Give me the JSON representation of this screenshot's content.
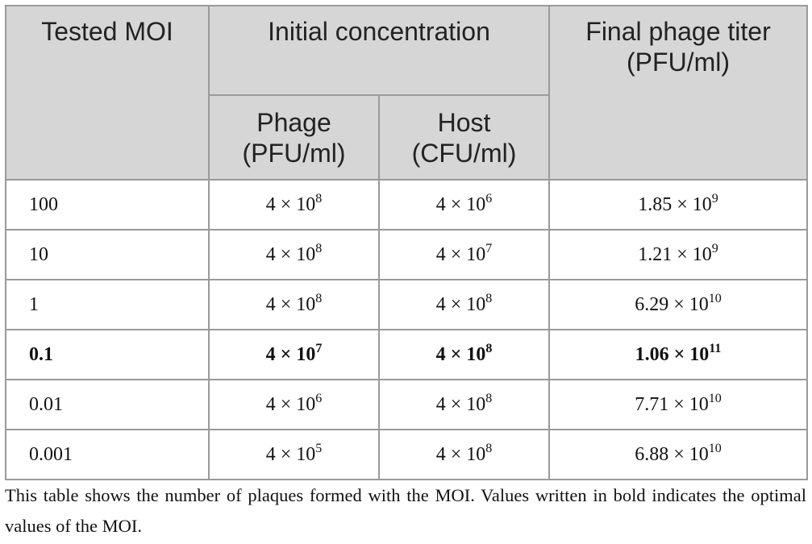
{
  "table": {
    "header": {
      "moi": "Tested MOI",
      "initial": "Initial concentration",
      "phage": "Phage (PFU/ml)",
      "host": "Host (CFU/ml)",
      "final": "Final phage titer (PFU/ml)"
    },
    "rows": [
      {
        "bold": false,
        "cells": [
          {
            "text": "100"
          },
          {
            "text": "4 × 10",
            "sup": "8"
          },
          {
            "text": "4 × 10",
            "sup": "6"
          },
          {
            "text": "1.85 × 10",
            "sup": "9"
          }
        ]
      },
      {
        "bold": false,
        "cells": [
          {
            "text": "10"
          },
          {
            "text": "4 × 10",
            "sup": "8"
          },
          {
            "text": "4 × 10",
            "sup": "7"
          },
          {
            "text": "1.21 × 10",
            "sup": "9"
          }
        ]
      },
      {
        "bold": false,
        "cells": [
          {
            "text": "1"
          },
          {
            "text": "4 × 10",
            "sup": "8"
          },
          {
            "text": "4 × 10",
            "sup": "8"
          },
          {
            "text": "6.29 × 10",
            "sup": "10"
          }
        ]
      },
      {
        "bold": true,
        "cells": [
          {
            "text": "0.1"
          },
          {
            "text": "4 × 10",
            "sup": "7"
          },
          {
            "text": "4 × 10",
            "sup": "8"
          },
          {
            "text": "1.06 × 10",
            "sup": "11"
          }
        ]
      },
      {
        "bold": false,
        "cells": [
          {
            "text": "0.01"
          },
          {
            "text": "4 × 10",
            "sup": "6"
          },
          {
            "text": "4 × 10",
            "sup": "8"
          },
          {
            "text": "7.71 × 10",
            "sup": "10"
          }
        ]
      },
      {
        "bold": false,
        "cells": [
          {
            "text": "0.001"
          },
          {
            "text": "4 × 10",
            "sup": "5"
          },
          {
            "text": "4 × 10",
            "sup": "8"
          },
          {
            "text": "6.88 × 10",
            "sup": "10"
          }
        ]
      }
    ]
  },
  "note": "This table shows the number of plaques formed with the MOI. Values written in bold indicates the optimal values of the MOI."
}
